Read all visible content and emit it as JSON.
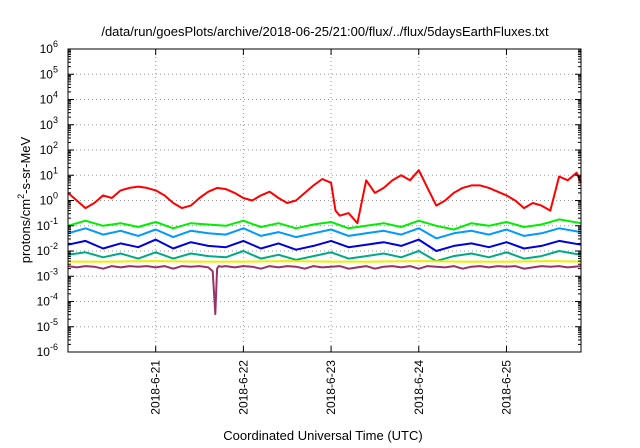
{
  "chart_data": {
    "type": "line",
    "title": "/data/run/goesPlots/archive/2018-06-25/21:00/flux/../flux/5daysEarthFluxes.txt",
    "xlabel": "Coordinated Universal Time (UTC)",
    "ylabel": "protons/cm²-s-sr-MeV",
    "ylabel_parts": {
      "base": "protons/cm",
      "sup": "2",
      "rest": "-s-sr-MeV"
    },
    "yscale": "log",
    "ylim_exp": [
      -6,
      6
    ],
    "xlim": [
      0,
      5.85
    ],
    "xticks": [
      {
        "x": 1,
        "label": "2018-6-21"
      },
      {
        "x": 2,
        "label": "2018-6-22"
      },
      {
        "x": 3,
        "label": "2018-6-23"
      },
      {
        "x": 4,
        "label": "2018-6-24"
      },
      {
        "x": 5,
        "label": "2018-6-25"
      }
    ],
    "grid": true,
    "series": [
      {
        "color": "#ff0000",
        "x": [
          0,
          0.1,
          0.2,
          0.3,
          0.4,
          0.5,
          0.6,
          0.7,
          0.8,
          0.9,
          1,
          1.1,
          1.2,
          1.3,
          1.4,
          1.5,
          1.6,
          1.7,
          1.8,
          1.9,
          2,
          2.1,
          2.2,
          2.3,
          2.4,
          2.5,
          2.6,
          2.7,
          2.8,
          2.9,
          3,
          3.05,
          3.1,
          3.2,
          3.3,
          3.4,
          3.5,
          3.6,
          3.7,
          3.8,
          3.9,
          4,
          4.1,
          4.2,
          4.3,
          4.4,
          4.5,
          4.6,
          4.7,
          4.8,
          4.9,
          5,
          5.1,
          5.2,
          5.3,
          5.4,
          5.5,
          5.6,
          5.7,
          5.8,
          5.85
        ],
        "logy": [
          0.3,
          0.0,
          -0.3,
          -0.1,
          0.2,
          0.1,
          0.4,
          0.5,
          0.55,
          0.5,
          0.4,
          0.2,
          -0.1,
          -0.3,
          -0.2,
          0.1,
          0.35,
          0.5,
          0.45,
          0.3,
          0.1,
          0.0,
          0.2,
          0.35,
          0.1,
          -0.1,
          0.0,
          0.3,
          0.6,
          0.85,
          0.7,
          -0.4,
          -0.6,
          -0.5,
          -0.9,
          0.8,
          0.3,
          0.5,
          0.8,
          1.0,
          0.8,
          1.2,
          0.5,
          -0.2,
          0.0,
          0.3,
          0.5,
          0.6,
          0.6,
          0.5,
          0.35,
          0.2,
          0.0,
          -0.3,
          -0.1,
          -0.2,
          -0.4,
          0.95,
          0.8,
          1.1,
          0.7
        ]
      },
      {
        "color": "#00ee00",
        "x": [
          0,
          0.2,
          0.4,
          0.6,
          0.8,
          1,
          1.2,
          1.4,
          1.6,
          1.8,
          2,
          2.2,
          2.4,
          2.6,
          2.8,
          3,
          3.2,
          3.4,
          3.6,
          3.8,
          4,
          4.2,
          4.4,
          4.6,
          4.8,
          5,
          5.2,
          5.4,
          5.6,
          5.85
        ],
        "logy": [
          -1.0,
          -0.8,
          -1.0,
          -0.9,
          -1.05,
          -0.85,
          -1.1,
          -0.9,
          -0.95,
          -1.0,
          -0.8,
          -1.05,
          -0.9,
          -1.1,
          -0.95,
          -0.85,
          -1.1,
          -1.0,
          -0.9,
          -1.05,
          -0.8,
          -1.0,
          -1.15,
          -0.9,
          -1.0,
          -0.85,
          -1.05,
          -0.95,
          -0.75,
          -0.9
        ]
      },
      {
        "color": "#0099ff",
        "x": [
          0,
          0.2,
          0.4,
          0.6,
          0.8,
          1,
          1.2,
          1.4,
          1.6,
          1.8,
          2,
          2.2,
          2.4,
          2.6,
          2.8,
          3,
          3.2,
          3.4,
          3.6,
          3.8,
          4,
          4.2,
          4.4,
          4.6,
          4.8,
          5,
          5.2,
          5.4,
          5.6,
          5.85
        ],
        "logy": [
          -1.3,
          -1.1,
          -1.35,
          -1.2,
          -1.4,
          -1.15,
          -1.45,
          -1.2,
          -1.3,
          -1.35,
          -1.1,
          -1.4,
          -1.25,
          -1.45,
          -1.3,
          -1.15,
          -1.4,
          -1.3,
          -1.2,
          -1.35,
          -1.1,
          -1.5,
          -1.3,
          -1.2,
          -1.35,
          -1.15,
          -1.4,
          -1.3,
          -1.1,
          -1.25
        ]
      },
      {
        "color": "#0000dd",
        "x": [
          0,
          0.2,
          0.4,
          0.6,
          0.8,
          1,
          1.2,
          1.4,
          1.6,
          1.8,
          2,
          2.2,
          2.4,
          2.6,
          2.8,
          3,
          3.2,
          3.4,
          3.6,
          3.8,
          4,
          4.2,
          4.4,
          4.6,
          4.8,
          5,
          5.2,
          5.4,
          5.6,
          5.85
        ],
        "logy": [
          -1.75,
          -1.6,
          -1.9,
          -1.7,
          -1.85,
          -1.55,
          -1.9,
          -1.65,
          -1.8,
          -1.85,
          -1.6,
          -1.9,
          -1.7,
          -1.95,
          -1.8,
          -1.6,
          -1.85,
          -1.75,
          -1.65,
          -1.8,
          -1.55,
          -2.0,
          -1.8,
          -1.7,
          -1.85,
          -1.65,
          -1.9,
          -1.8,
          -1.6,
          -1.75
        ]
      },
      {
        "color": "#00aa88",
        "x": [
          0,
          0.2,
          0.4,
          0.6,
          0.8,
          1,
          1.2,
          1.4,
          1.6,
          1.8,
          2,
          2.2,
          2.4,
          2.6,
          2.8,
          3,
          3.2,
          3.4,
          3.6,
          3.8,
          4,
          4.2,
          4.4,
          4.6,
          4.8,
          5,
          5.2,
          5.4,
          5.6,
          5.85
        ],
        "logy": [
          -2.15,
          -2.05,
          -2.25,
          -2.1,
          -2.3,
          -2.05,
          -2.3,
          -2.1,
          -2.2,
          -2.25,
          -2.0,
          -2.3,
          -2.15,
          -2.35,
          -2.2,
          -2.05,
          -2.3,
          -2.2,
          -2.1,
          -2.25,
          -2.0,
          -2.4,
          -2.2,
          -2.1,
          -2.25,
          -2.05,
          -2.3,
          -2.2,
          -2.0,
          -2.15
        ]
      },
      {
        "color": "#eeee00",
        "x": [
          0,
          0.5,
          1,
          1.5,
          2,
          2.5,
          3,
          3.5,
          4,
          4.5,
          5,
          5.5,
          5.85
        ],
        "logy": [
          -2.42,
          -2.42,
          -2.4,
          -2.42,
          -2.42,
          -2.4,
          -2.42,
          -2.42,
          -2.4,
          -2.42,
          -2.42,
          -2.4,
          -2.42
        ]
      },
      {
        "color": "#993366",
        "x": [
          0,
          0.1,
          0.2,
          0.3,
          0.4,
          0.5,
          0.6,
          0.7,
          0.8,
          0.9,
          1,
          1.1,
          1.2,
          1.3,
          1.4,
          1.5,
          1.6,
          1.65,
          1.68,
          1.7,
          1.72,
          1.75,
          1.8,
          1.9,
          2,
          2.1,
          2.2,
          2.3,
          2.4,
          2.5,
          2.6,
          2.7,
          2.8,
          2.9,
          3,
          3.1,
          3.2,
          3.3,
          3.4,
          3.5,
          3.6,
          3.7,
          3.8,
          3.9,
          4,
          4.1,
          4.2,
          4.3,
          4.4,
          4.5,
          4.6,
          4.7,
          4.8,
          4.9,
          5,
          5.1,
          5.2,
          5.3,
          5.4,
          5.5,
          5.6,
          5.7,
          5.85
        ],
        "logy": [
          -2.6,
          -2.65,
          -2.6,
          -2.62,
          -2.7,
          -2.6,
          -2.65,
          -2.6,
          -2.62,
          -2.6,
          -2.65,
          -2.6,
          -2.7,
          -2.6,
          -2.62,
          -2.6,
          -2.65,
          -2.8,
          -4.5,
          -2.7,
          -2.6,
          -2.62,
          -2.6,
          -2.65,
          -2.6,
          -2.62,
          -2.7,
          -2.6,
          -2.65,
          -2.6,
          -2.62,
          -2.7,
          -2.6,
          -2.65,
          -2.62,
          -2.6,
          -2.7,
          -2.65,
          -2.6,
          -2.7,
          -2.62,
          -2.6,
          -2.65,
          -2.6,
          -2.7,
          -2.6,
          -2.62,
          -2.65,
          -2.6,
          -2.7,
          -2.62,
          -2.6,
          -2.65,
          -2.6,
          -2.62,
          -2.6,
          -2.7,
          -2.65,
          -2.6,
          -2.62,
          -2.6,
          -2.65,
          -2.6
        ]
      }
    ]
  }
}
